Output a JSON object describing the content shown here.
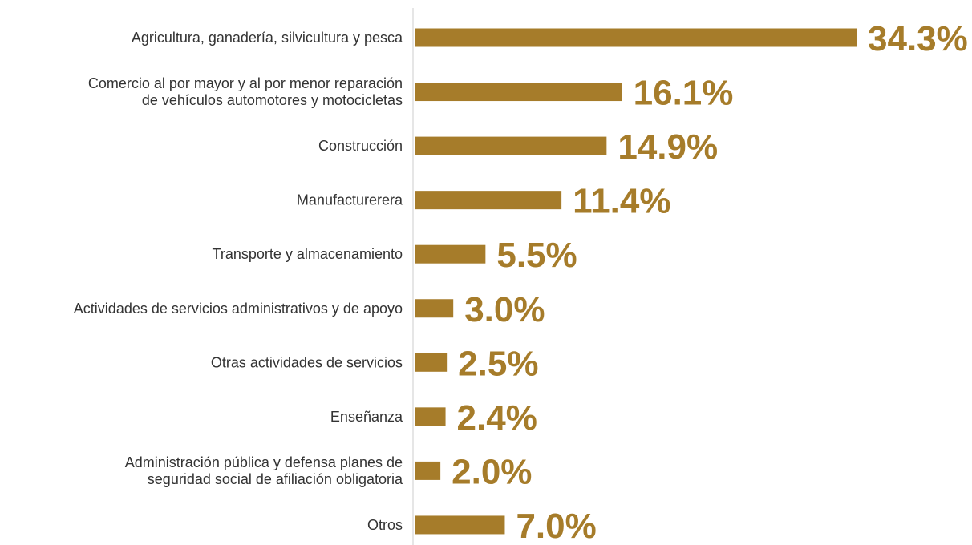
{
  "chart_data": {
    "type": "bar",
    "orientation": "horizontal",
    "categories": [
      [
        "Agricultura, ganadería, silvicultura y pesca"
      ],
      [
        "Comercio al por mayor y al por menor reparación",
        "de vehículos automotores y motocicletas"
      ],
      [
        "Construcción"
      ],
      [
        "Manufacturerera"
      ],
      [
        "Transporte y almacenamiento"
      ],
      [
        "Actividades de servicios administrativos y de apoyo"
      ],
      [
        "Otras actividades de servicios"
      ],
      [
        "Enseñanza"
      ],
      [
        "Administración pública y defensa planes de",
        "seguridad social de afiliación obligatoria"
      ],
      [
        "Otros"
      ]
    ],
    "values": [
      34.3,
      16.1,
      14.9,
      11.4,
      5.5,
      3.0,
      2.5,
      2.4,
      2.0,
      7.0
    ],
    "value_labels": [
      "34.3%",
      "16.1%",
      "14.9%",
      "11.4%",
      "5.5%",
      "3.0%",
      "2.5%",
      "2.4%",
      "2.0%",
      "7.0%"
    ],
    "xlim": [
      0,
      34.3
    ],
    "grid": false,
    "bar_color": "#A67C2A",
    "label_color": "#A67C2A"
  }
}
